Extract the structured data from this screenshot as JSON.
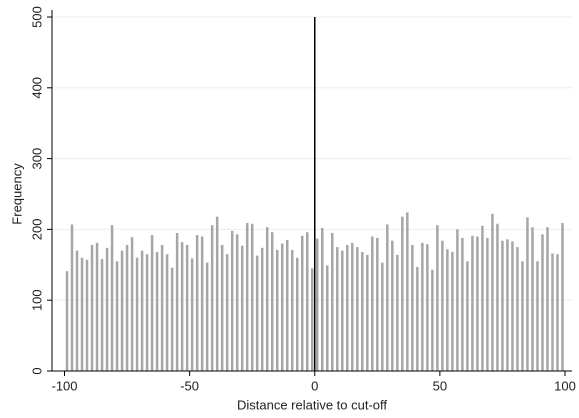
{
  "chart_data": {
    "type": "histogram",
    "xlabel": "Distance relative to cut-off",
    "ylabel": "Frequency",
    "bins": [
      -100,
      -98,
      -96,
      -94,
      -92,
      -90,
      -88,
      -86,
      -84,
      -82,
      -80,
      -78,
      -76,
      -74,
      -72,
      -70,
      -68,
      -66,
      -64,
      -62,
      -60,
      -58,
      -56,
      -54,
      -52,
      -50,
      -48,
      -46,
      -44,
      -42,
      -40,
      -38,
      -36,
      -34,
      -32,
      -30,
      -28,
      -26,
      -24,
      -22,
      -20,
      -18,
      -16,
      -14,
      -12,
      -10,
      -8,
      -6,
      -4,
      -2,
      0,
      2,
      4,
      6,
      8,
      10,
      12,
      14,
      16,
      18,
      20,
      22,
      24,
      26,
      28,
      30,
      32,
      34,
      36,
      38,
      40,
      42,
      44,
      46,
      48,
      50,
      52,
      54,
      56,
      58,
      60,
      62,
      64,
      66,
      68,
      70,
      72,
      74,
      76,
      78,
      80,
      82,
      84,
      86,
      88,
      90,
      92,
      94,
      96,
      98,
      100
    ],
    "values": [
      141,
      207,
      170,
      160,
      157,
      178,
      181,
      158,
      174,
      206,
      155,
      170,
      178,
      189,
      160,
      170,
      165,
      192,
      168,
      178,
      165,
      146,
      195,
      182,
      178,
      159,
      192,
      190,
      153,
      206,
      218,
      178,
      165,
      198,
      193,
      177,
      209,
      208,
      163,
      174,
      203,
      196,
      171,
      180,
      185,
      171,
      160,
      191,
      196,
      145,
      187,
      202,
      149,
      195,
      175,
      170,
      178,
      181,
      175,
      168,
      164,
      190,
      188,
      153,
      207,
      184,
      164,
      218,
      224,
      178,
      147,
      181,
      179,
      143,
      206,
      184,
      172,
      168,
      200,
      188,
      155,
      191,
      190,
      205,
      188,
      222,
      208,
      184,
      186,
      183,
      175,
      155,
      217,
      203,
      155,
      193,
      203,
      166,
      165,
      209
    ],
    "color": "#a6a6a6",
    "vline": 0,
    "vline_color": "#000000",
    "xlim": [
      -105,
      102.8
    ],
    "ylim": [
      0,
      500
    ],
    "xticks": [
      -100,
      -50,
      0,
      50,
      100
    ],
    "yticks": [
      0,
      100,
      200,
      300,
      400,
      500
    ],
    "grid": true
  }
}
